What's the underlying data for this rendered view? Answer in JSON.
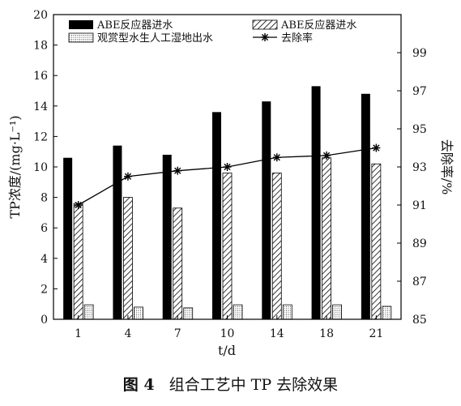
{
  "chart_data": {
    "type": "bar",
    "xlabel": "t/d",
    "ylabel": "TP浓度/(mg·L⁻¹)",
    "ylabel_right": "去除率/%",
    "categories": [
      "1",
      "4",
      "7",
      "10",
      "14",
      "18",
      "21"
    ],
    "ylim": [
      0,
      20
    ],
    "yticks": [
      "0",
      "2",
      "4",
      "6",
      "8",
      "10",
      "12",
      "14",
      "16",
      "18",
      "20"
    ],
    "ylim_right": [
      85,
      101
    ],
    "yticks_right": [
      "85",
      "87",
      "89",
      "91",
      "93",
      "95",
      "97",
      "99"
    ],
    "grid": false,
    "legend_position": "top",
    "series": [
      {
        "name": "ABE反应器进水",
        "pattern": "solid",
        "axis": "left",
        "values": [
          10.6,
          11.4,
          10.8,
          13.6,
          14.3,
          15.3,
          14.8
        ]
      },
      {
        "name": "ABE反应器进水",
        "pattern": "hatch",
        "axis": "left",
        "values": [
          7.6,
          8.0,
          7.3,
          9.6,
          9.6,
          10.6,
          10.2
        ]
      },
      {
        "name": "观赏型水生人工湿地出水",
        "pattern": "dots",
        "axis": "left",
        "values": [
          0.95,
          0.8,
          0.75,
          0.95,
          0.95,
          0.95,
          0.85
        ]
      },
      {
        "name": "去除率",
        "type": "line",
        "marker": "asterisk",
        "axis": "right",
        "values": [
          91.0,
          92.5,
          92.8,
          93.0,
          93.5,
          93.6,
          94.0
        ]
      }
    ]
  },
  "caption": {
    "label": "图 4",
    "text": "组合工艺中 TP 去除效果"
  },
  "colors": {
    "bar_solid": "#000000",
    "axis": "#000000",
    "pattern_stroke": "#000000"
  }
}
